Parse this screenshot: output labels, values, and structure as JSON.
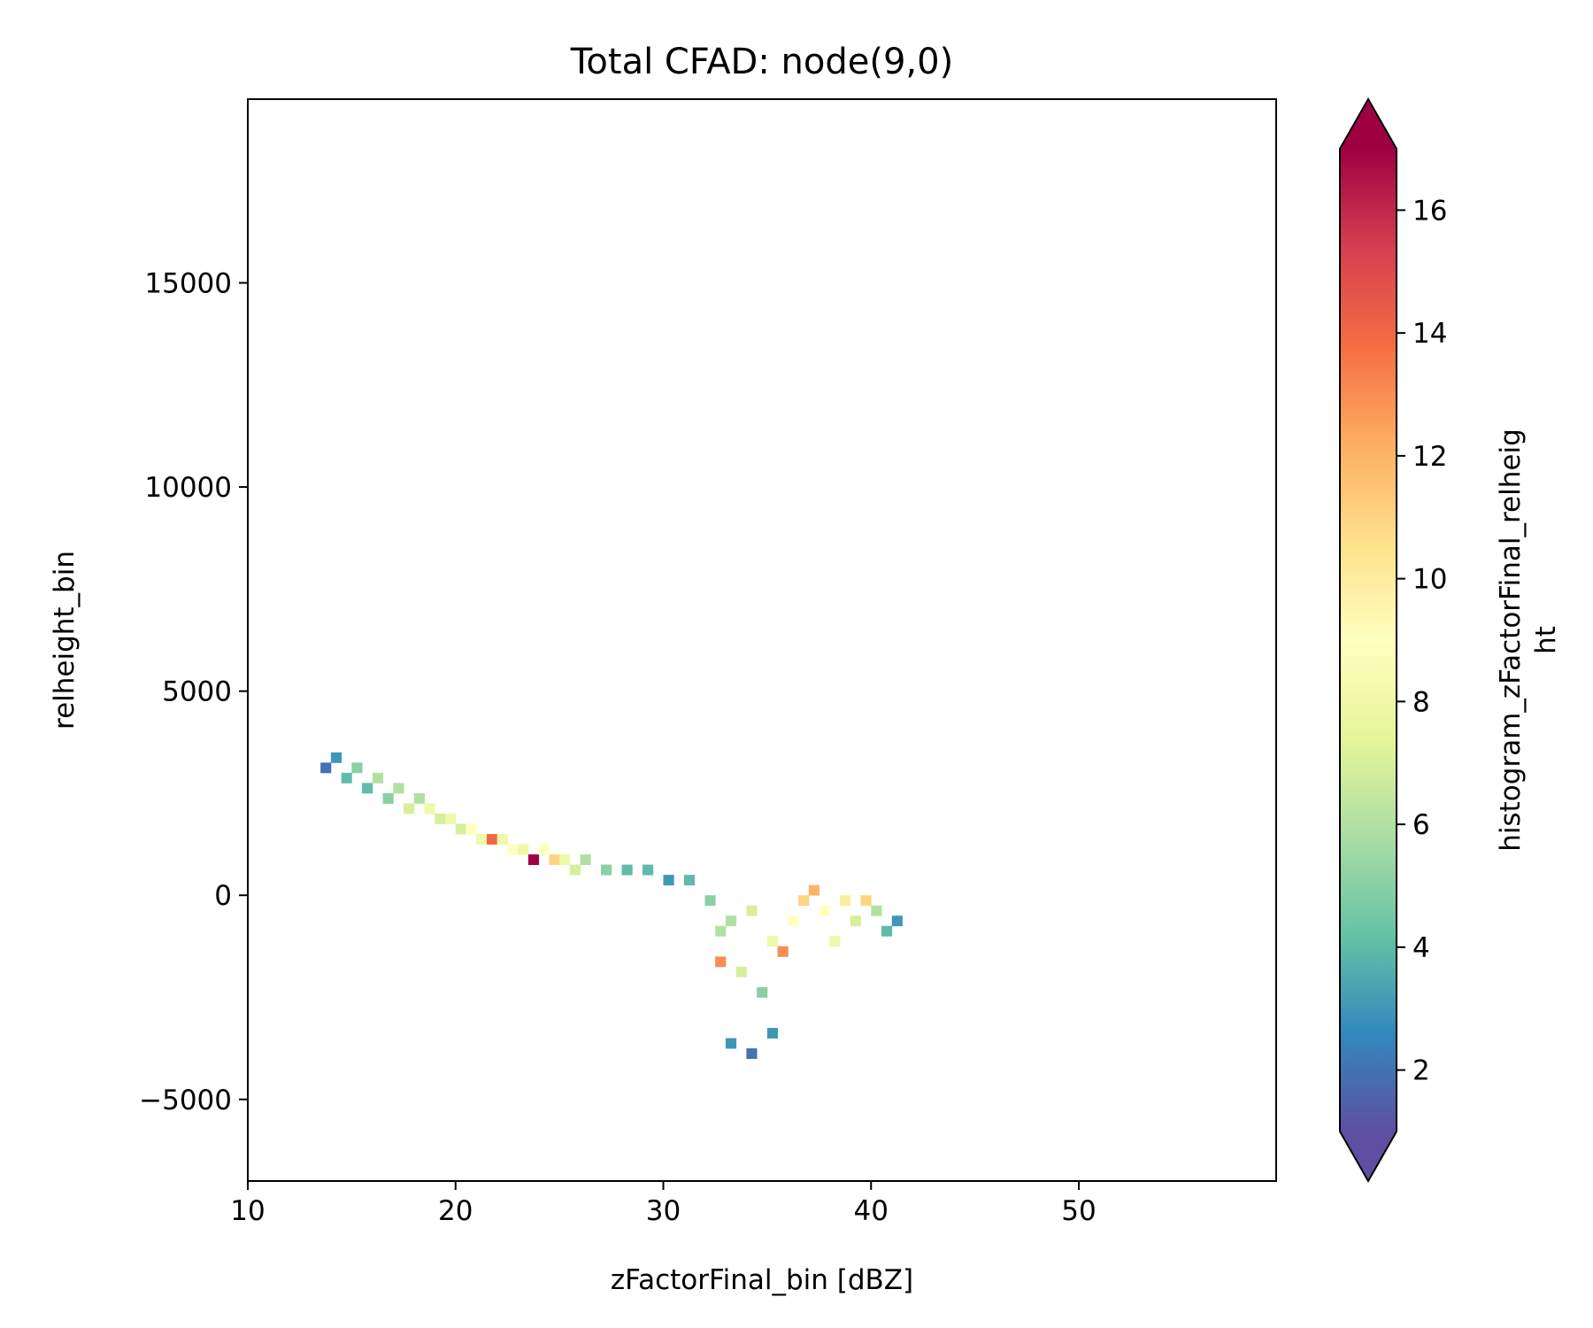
{
  "chart_data": {
    "type": "heatmap",
    "title": "Total CFAD: node(9,0)",
    "xlabel": "zFactorFinal_bin [dBZ]",
    "ylabel": "relheight_bin",
    "xlim": [
      10,
      59.5
    ],
    "ylim": [
      -7000,
      19500
    ],
    "xticks": [
      10,
      20,
      30,
      40,
      50
    ],
    "xtick_labels": [
      "10",
      "20",
      "30",
      "40",
      "50"
    ],
    "yticks": [
      -5000,
      0,
      5000,
      10000,
      15000
    ],
    "ytick_labels": [
      "−5000",
      "0",
      "5000",
      "10000",
      "15000"
    ],
    "grid": false,
    "colormap": "Spectral_r",
    "colormap_stops": [
      "#5e4fa2",
      "#3288bd",
      "#66c2a5",
      "#abdda4",
      "#e6f598",
      "#ffffbf",
      "#fee08b",
      "#fdae61",
      "#f46d43",
      "#d53e4f",
      "#9e0142"
    ],
    "color_min": 1,
    "color_max": 17,
    "colorbar": {
      "label_line1": "histogram_zFactorFinal_relheig",
      "label_line2": "ht",
      "ticks": [
        2,
        4,
        6,
        8,
        10,
        12,
        14,
        16
      ],
      "tick_labels": [
        "2",
        "4",
        "6",
        "8",
        "10",
        "12",
        "14",
        "16"
      ],
      "extend": "both"
    },
    "bin_width_dbz": 0.5,
    "bin_height_m": 250,
    "cells": [
      {
        "x": 13.5,
        "y": 3000,
        "count": 2
      },
      {
        "x": 14.0,
        "y": 3250,
        "count": 3
      },
      {
        "x": 14.5,
        "y": 2750,
        "count": 4
      },
      {
        "x": 15.0,
        "y": 3000,
        "count": 5
      },
      {
        "x": 15.5,
        "y": 2500,
        "count": 4
      },
      {
        "x": 16.0,
        "y": 2750,
        "count": 6
      },
      {
        "x": 16.5,
        "y": 2250,
        "count": 5
      },
      {
        "x": 17.0,
        "y": 2500,
        "count": 6
      },
      {
        "x": 17.5,
        "y": 2000,
        "count": 7
      },
      {
        "x": 18.0,
        "y": 2250,
        "count": 6
      },
      {
        "x": 18.5,
        "y": 2000,
        "count": 8
      },
      {
        "x": 19.0,
        "y": 1750,
        "count": 7
      },
      {
        "x": 19.5,
        "y": 1750,
        "count": 8
      },
      {
        "x": 20.0,
        "y": 1500,
        "count": 7
      },
      {
        "x": 20.5,
        "y": 1500,
        "count": 9
      },
      {
        "x": 21.0,
        "y": 1250,
        "count": 8
      },
      {
        "x": 21.5,
        "y": 1250,
        "count": 14
      },
      {
        "x": 22.0,
        "y": 1250,
        "count": 8
      },
      {
        "x": 22.5,
        "y": 1000,
        "count": 9
      },
      {
        "x": 23.0,
        "y": 1000,
        "count": 8
      },
      {
        "x": 23.5,
        "y": 750,
        "count": 17
      },
      {
        "x": 24.0,
        "y": 1000,
        "count": 9
      },
      {
        "x": 24.5,
        "y": 750,
        "count": 11
      },
      {
        "x": 25.0,
        "y": 750,
        "count": 8
      },
      {
        "x": 25.5,
        "y": 500,
        "count": 7
      },
      {
        "x": 26.0,
        "y": 750,
        "count": 6
      },
      {
        "x": 27.0,
        "y": 500,
        "count": 5
      },
      {
        "x": 28.0,
        "y": 500,
        "count": 4
      },
      {
        "x": 29.0,
        "y": 500,
        "count": 4
      },
      {
        "x": 30.0,
        "y": 250,
        "count": 3
      },
      {
        "x": 31.0,
        "y": 250,
        "count": 4
      },
      {
        "x": 32.0,
        "y": -250,
        "count": 5
      },
      {
        "x": 32.5,
        "y": -1000,
        "count": 6
      },
      {
        "x": 32.5,
        "y": -1750,
        "count": 13
      },
      {
        "x": 33.0,
        "y": -750,
        "count": 6
      },
      {
        "x": 33.5,
        "y": -2000,
        "count": 7
      },
      {
        "x": 34.0,
        "y": -500,
        "count": 7
      },
      {
        "x": 34.5,
        "y": -2500,
        "count": 5
      },
      {
        "x": 35.0,
        "y": -1250,
        "count": 8
      },
      {
        "x": 35.5,
        "y": -1500,
        "count": 13
      },
      {
        "x": 36.0,
        "y": -750,
        "count": 9
      },
      {
        "x": 36.5,
        "y": -250,
        "count": 11
      },
      {
        "x": 37.0,
        "y": 0,
        "count": 12
      },
      {
        "x": 37.5,
        "y": -500,
        "count": 9
      },
      {
        "x": 38.0,
        "y": -1250,
        "count": 8
      },
      {
        "x": 38.5,
        "y": -250,
        "count": 10
      },
      {
        "x": 39.0,
        "y": -750,
        "count": 7
      },
      {
        "x": 39.5,
        "y": -250,
        "count": 11
      },
      {
        "x": 40.0,
        "y": -500,
        "count": 6
      },
      {
        "x": 40.5,
        "y": -1000,
        "count": 4
      },
      {
        "x": 41.0,
        "y": -750,
        "count": 3
      },
      {
        "x": 33.0,
        "y": -3750,
        "count": 3
      },
      {
        "x": 34.0,
        "y": -4000,
        "count": 2
      },
      {
        "x": 35.0,
        "y": -3500,
        "count": 3
      }
    ]
  }
}
